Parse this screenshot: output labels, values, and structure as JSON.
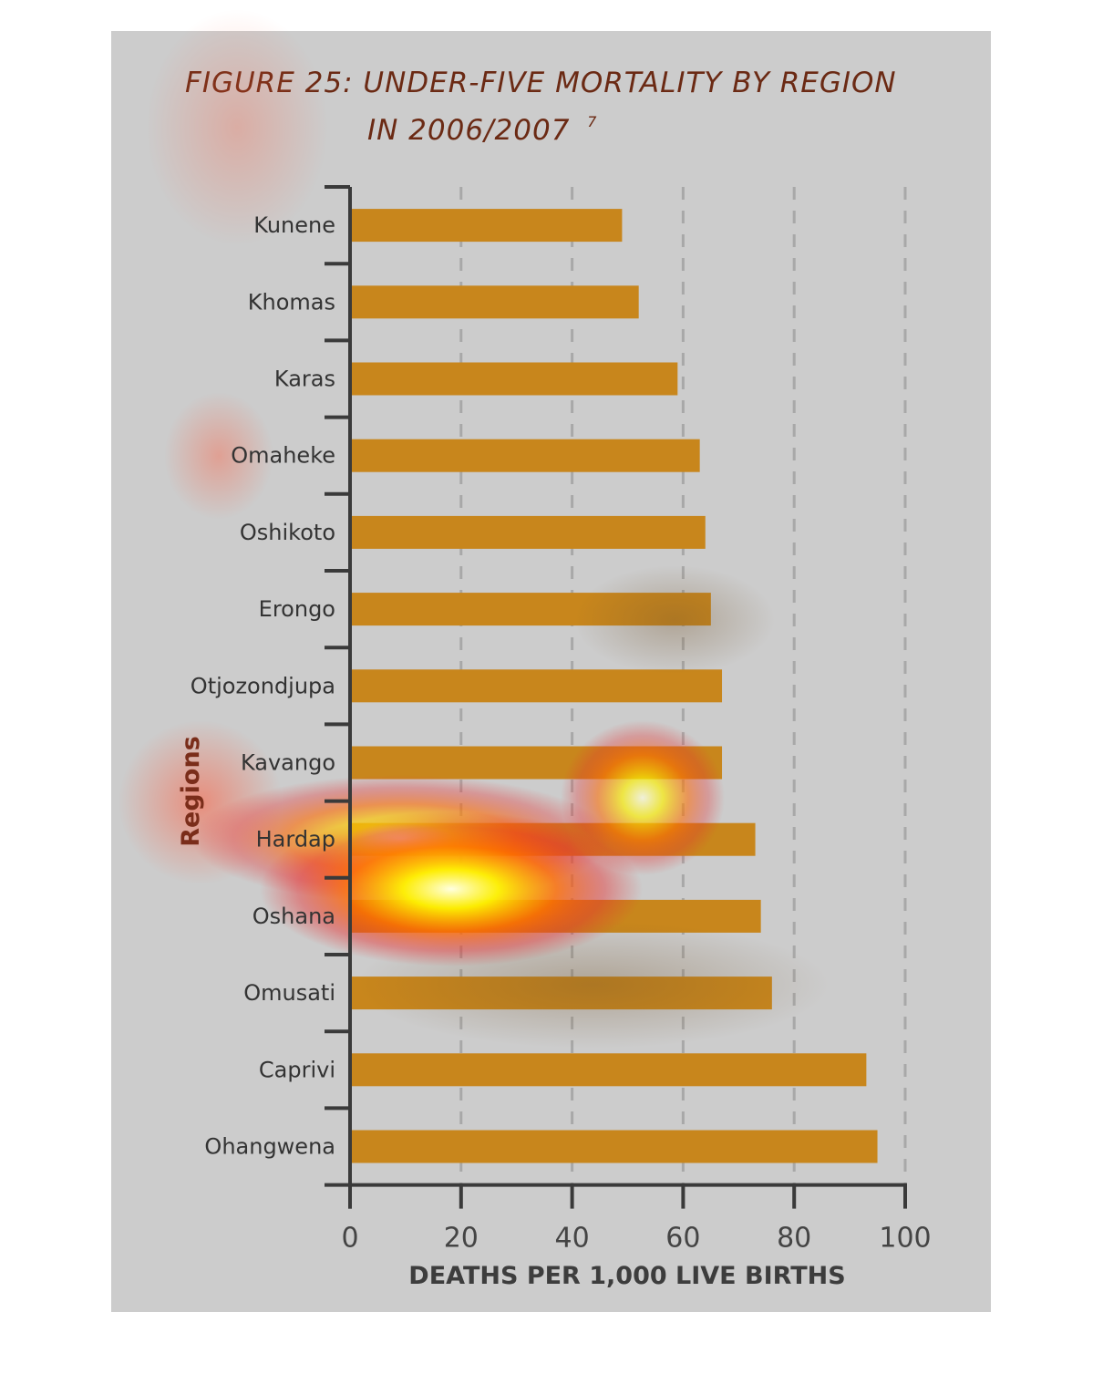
{
  "chart_data": {
    "type": "bar",
    "orientation": "horizontal",
    "title_line1": "FIGURE 25: UNDER-FIVE MORTALITY BY REGION",
    "title_line2": "IN 2006/2007",
    "title_footnote": "7",
    "xlabel": "DEATHS PER 1,000 LIVE BIRTHS",
    "ylabel": "Regions",
    "xlim": [
      0,
      100
    ],
    "xticks": [
      0,
      20,
      40,
      60,
      80,
      100
    ],
    "grid": "vertical dashed",
    "categories": [
      "Kunene",
      "Khomas",
      "Karas",
      "Omaheke",
      "Oshikoto",
      "Erongo",
      "Otjozondjupa",
      "Kavango",
      "Hardap",
      "Oshana",
      "Omusati",
      "Caprivi",
      "Ohangwena"
    ],
    "values": [
      49,
      52,
      59,
      63,
      64,
      65,
      67,
      67,
      73,
      74,
      76,
      93,
      95
    ],
    "bar_color": "#c8861c"
  }
}
